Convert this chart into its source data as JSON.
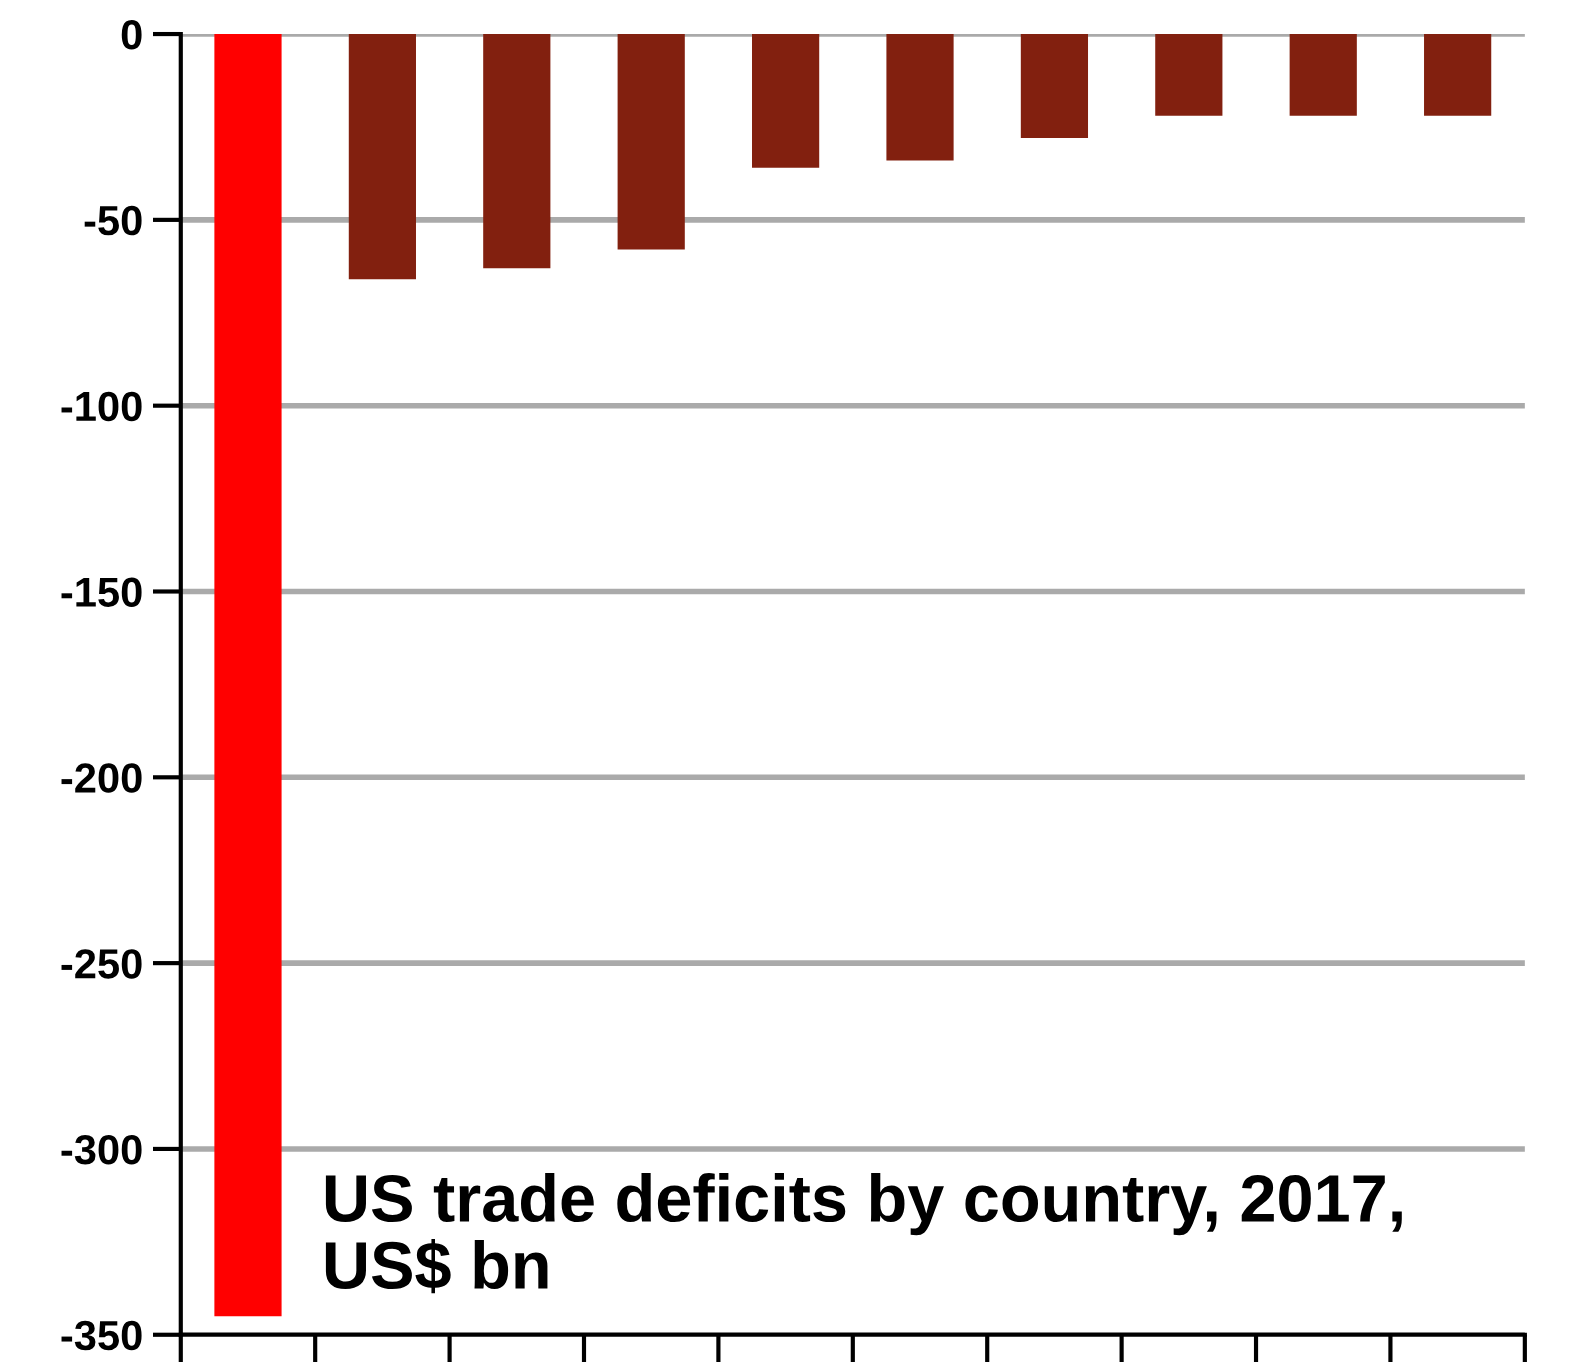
{
  "chart_data": {
    "type": "bar",
    "title": "US trade deficits by country, 2017,\nUS$ bn",
    "categories": [
      null,
      null,
      null,
      null,
      null,
      null,
      null,
      null,
      null,
      null
    ],
    "values": [
      -345,
      -66,
      -63,
      -58,
      -36,
      -34,
      -28,
      -22,
      -22,
      -22
    ],
    "colors": [
      "#ff0000",
      "#82200f",
      "#82200f",
      "#82200f",
      "#82200f",
      "#82200f",
      "#82200f",
      "#82200f",
      "#82200f",
      "#82200f"
    ],
    "ylim": [
      -350,
      0
    ],
    "yticks": [
      -350,
      -300,
      -250,
      -200,
      -150,
      -100,
      -50,
      0
    ],
    "grid": "y"
  }
}
